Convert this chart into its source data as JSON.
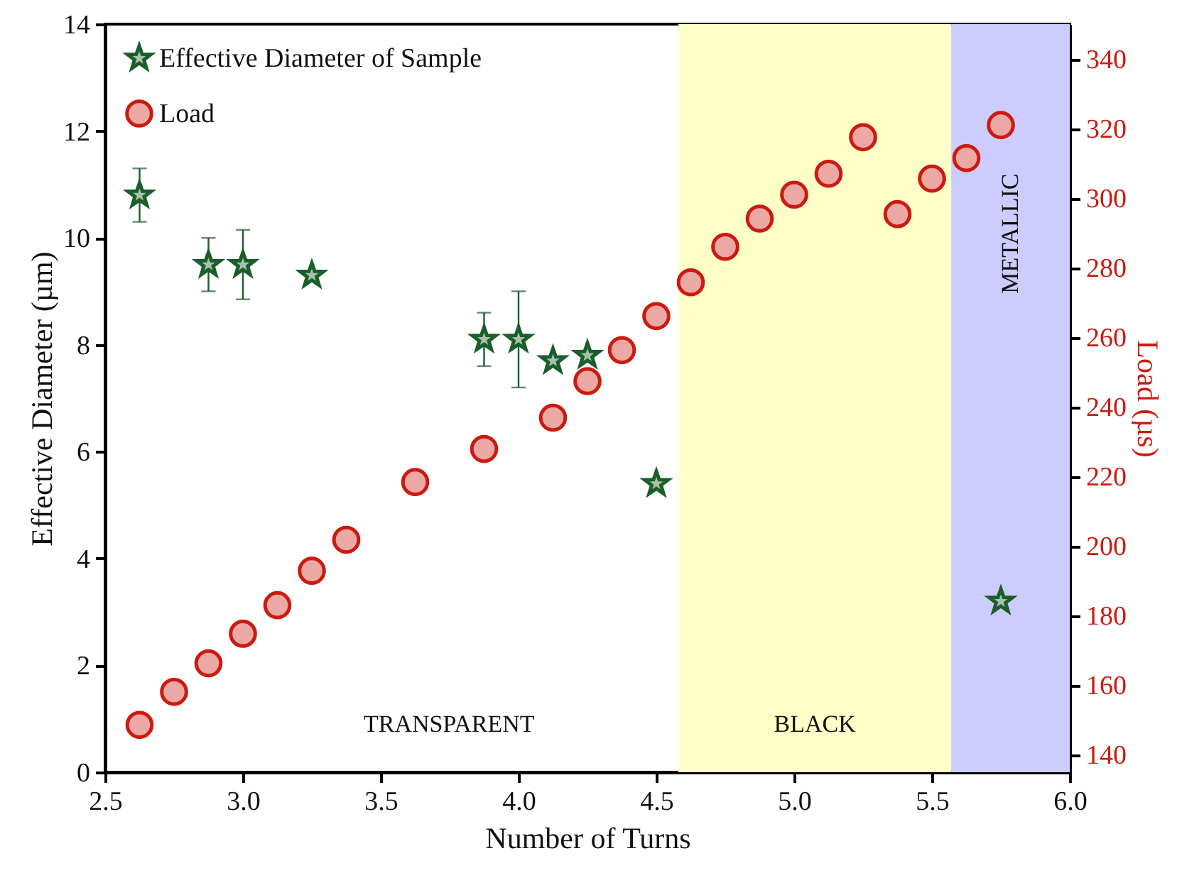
{
  "chart_data": {
    "type": "scatter",
    "xlabel": "Number of Turns",
    "ylabel": "Effective Diameter (µm)",
    "y2label": "Load (µs)",
    "xlim": [
      2.5,
      6.0
    ],
    "xticks": [
      2.5,
      {
        "value": 3,
        "label": "3.0"
      },
      3.5,
      {
        "value": 4,
        "label": "4.0"
      },
      4.5,
      {
        "value": 5,
        "label": "5.0"
      },
      5.5,
      {
        "value": 6,
        "label": "6.0"
      }
    ],
    "ylim": [
      0,
      14
    ],
    "yticks": [
      0,
      2,
      4,
      6,
      8,
      10,
      12,
      14
    ],
    "y2lim": [
      135,
      350
    ],
    "y2ticks": [
      140,
      160,
      180,
      200,
      220,
      240,
      260,
      280,
      300,
      320,
      340
    ],
    "grid": false,
    "legend": "top left",
    "series": [
      {
        "name": "Effective Diameter of Sample",
        "color": "#1a5e2a",
        "marker": "star",
        "x": [
          2.625,
          2.875,
          3.0,
          3.25,
          3.875,
          4.0,
          4.125,
          4.25,
          4.5,
          5.75
        ],
        "values": [
          10.8,
          9.5,
          9.5,
          9.3,
          8.1,
          8.1,
          7.7,
          7.8,
          5.4,
          3.2
        ],
        "errors": [
          0.5,
          0.5,
          0.65,
          null,
          0.5,
          [
            7.2,
            9.0
          ],
          null,
          null,
          null,
          null
        ]
      },
      {
        "name": "Load",
        "color": "#cc1a10",
        "marker": "circle",
        "axis": "y2",
        "x": [
          2.625,
          2.75,
          2.875,
          3.0,
          3.125,
          3.25,
          3.375,
          3.625,
          3.875,
          4.125,
          4.25,
          4.375,
          4.5,
          4.625,
          4.75,
          4.875,
          5.0,
          5.125,
          5.25,
          5.375,
          5.5,
          5.625,
          5.75
        ],
        "values": [
          148.6,
          158.1,
          166.3,
          174.8,
          183,
          192.9,
          201.8,
          218.4,
          227.9,
          236.9,
          247.4,
          256.3,
          266.1,
          275.8,
          286,
          294.1,
          301,
          307,
          317.5,
          295.4,
          305.6,
          311.5,
          321
        ]
      }
    ],
    "bands": [
      {
        "axis": "x",
        "from": 4.58,
        "to": 5.57,
        "label": "BLACK",
        "color": "#ffffc8"
      },
      {
        "axis": "x",
        "from": 5.57,
        "to": 6.0,
        "label": "METALLIC",
        "color": "#ccccff"
      }
    ],
    "annotations": [
      "TRANSPARENT"
    ]
  }
}
